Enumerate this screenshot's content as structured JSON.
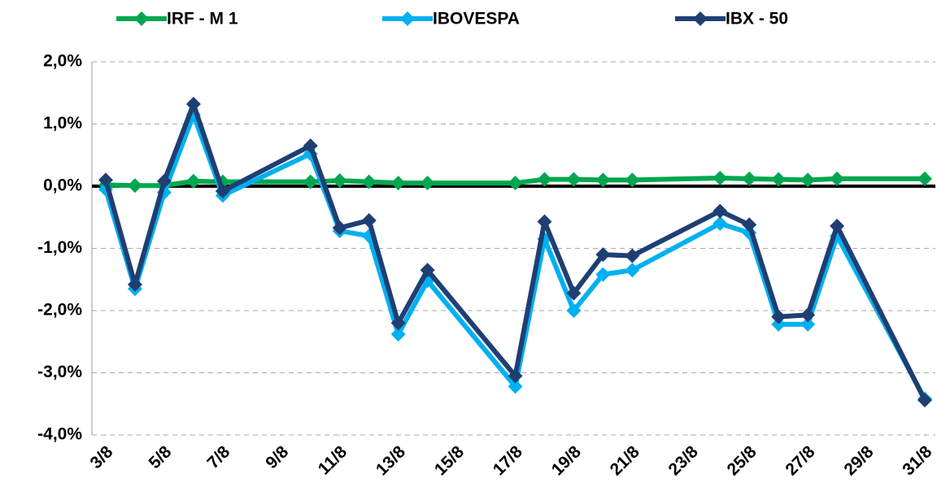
{
  "chart_data": {
    "type": "line",
    "x": [
      3,
      4,
      5,
      6,
      7,
      10,
      11,
      12,
      13,
      14,
      17,
      18,
      19,
      20,
      21,
      24,
      25,
      26,
      27,
      28,
      31
    ],
    "xlim": [
      3,
      31
    ],
    "xticks": [
      {
        "value": 3,
        "label": "3/8"
      },
      {
        "value": 5,
        "label": "5/8"
      },
      {
        "value": 7,
        "label": "7/8"
      },
      {
        "value": 9,
        "label": "9/8"
      },
      {
        "value": 11,
        "label": "11/8"
      },
      {
        "value": 13,
        "label": "13/8"
      },
      {
        "value": 15,
        "label": "15/8"
      },
      {
        "value": 17,
        "label": "17/8"
      },
      {
        "value": 19,
        "label": "19/8"
      },
      {
        "value": 21,
        "label": "21/8"
      },
      {
        "value": 23,
        "label": "23/8"
      },
      {
        "value": 25,
        "label": "25/8"
      },
      {
        "value": 27,
        "label": "27/8"
      },
      {
        "value": 29,
        "label": "29/8"
      },
      {
        "value": 31,
        "label": "31/8"
      }
    ],
    "ylim": [
      -4,
      2
    ],
    "yticks": [
      {
        "value": -4,
        "label": "-4,0%"
      },
      {
        "value": -3,
        "label": "-3,0%"
      },
      {
        "value": -2,
        "label": "-2,0%"
      },
      {
        "value": -1,
        "label": "-1,0%"
      },
      {
        "value": 0,
        "label": "0,0%"
      },
      {
        "value": 1,
        "label": "1,0%"
      },
      {
        "value": 2,
        "label": "2,0%"
      }
    ],
    "grid": true,
    "legend": "top",
    "series": [
      {
        "name": "IRF - M 1",
        "color": "#00a64f",
        "values": [
          0.02,
          0.01,
          0.01,
          0.08,
          0.07,
          0.07,
          0.09,
          0.07,
          0.05,
          0.05,
          0.05,
          0.11,
          0.11,
          0.1,
          0.1,
          0.13,
          0.12,
          0.11,
          0.1,
          0.12,
          0.12
        ]
      },
      {
        "name": "IBOVESPA",
        "color": "#00b0f0",
        "values": [
          -0.05,
          -1.65,
          -0.1,
          1.15,
          -0.15,
          0.52,
          -0.72,
          -0.8,
          -2.38,
          -1.52,
          -3.22,
          -0.85,
          -2.0,
          -1.42,
          -1.35,
          -0.6,
          -0.75,
          -2.22,
          -2.22,
          -0.8,
          -3.42
        ]
      },
      {
        "name": "IBX - 50",
        "color": "#1f3f73",
        "values": [
          0.1,
          -1.58,
          0.08,
          1.32,
          -0.08,
          0.65,
          -0.67,
          -0.55,
          -2.2,
          -1.35,
          -3.05,
          -0.57,
          -1.72,
          -1.1,
          -1.12,
          -0.4,
          -0.62,
          -2.1,
          -2.07,
          -0.64,
          -3.44
        ]
      }
    ]
  }
}
